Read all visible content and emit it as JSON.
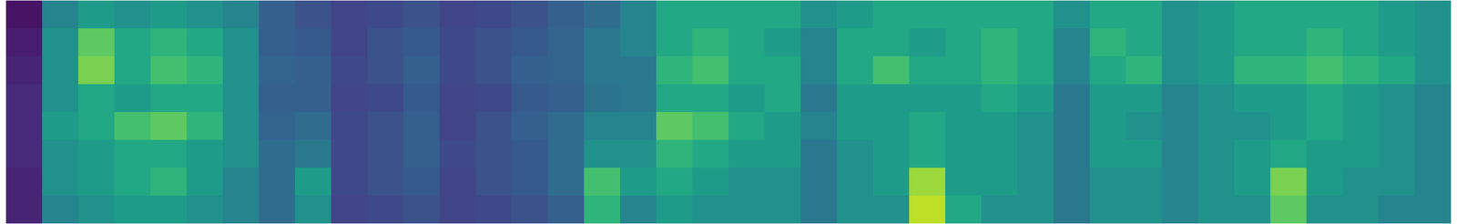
{
  "chart_data": {
    "type": "heatmap",
    "tick_labels": false,
    "zlim": [
      0,
      1
    ],
    "cells": [
      [
        0.05,
        0.45,
        0.55,
        0.5,
        0.55,
        0.5,
        0.45,
        0.3,
        0.25,
        0.2,
        0.22,
        0.25,
        0.2,
        0.22,
        0.25,
        0.3,
        0.35,
        0.45,
        0.6,
        0.6,
        0.6,
        0.6,
        0.5,
        0.55,
        0.6,
        0.6,
        0.6,
        0.6,
        0.6,
        0.5,
        0.6,
        0.6,
        0.5,
        0.55,
        0.6,
        0.6,
        0.6,
        0.6,
        0.55,
        0.5
      ],
      [
        0.08,
        0.5,
        0.75,
        0.6,
        0.65,
        0.6,
        0.5,
        0.3,
        0.28,
        0.2,
        0.25,
        0.28,
        0.22,
        0.25,
        0.28,
        0.32,
        0.4,
        0.45,
        0.6,
        0.65,
        0.6,
        0.55,
        0.45,
        0.6,
        0.6,
        0.55,
        0.6,
        0.65,
        0.6,
        0.45,
        0.65,
        0.6,
        0.5,
        0.55,
        0.6,
        0.6,
        0.65,
        0.6,
        0.55,
        0.5
      ],
      [
        0.1,
        0.5,
        0.8,
        0.6,
        0.7,
        0.65,
        0.5,
        0.32,
        0.3,
        0.22,
        0.25,
        0.3,
        0.22,
        0.25,
        0.3,
        0.32,
        0.4,
        0.4,
        0.65,
        0.7,
        0.6,
        0.6,
        0.45,
        0.6,
        0.7,
        0.6,
        0.6,
        0.65,
        0.6,
        0.45,
        0.6,
        0.65,
        0.5,
        0.55,
        0.65,
        0.65,
        0.7,
        0.65,
        0.6,
        0.5
      ],
      [
        0.12,
        0.5,
        0.6,
        0.55,
        0.6,
        0.6,
        0.5,
        0.3,
        0.3,
        0.2,
        0.22,
        0.28,
        0.2,
        0.22,
        0.28,
        0.3,
        0.38,
        0.4,
        0.6,
        0.6,
        0.55,
        0.6,
        0.4,
        0.55,
        0.55,
        0.55,
        0.55,
        0.6,
        0.55,
        0.4,
        0.55,
        0.55,
        0.45,
        0.5,
        0.55,
        0.55,
        0.6,
        0.55,
        0.5,
        0.45
      ],
      [
        0.12,
        0.55,
        0.6,
        0.7,
        0.75,
        0.65,
        0.5,
        0.32,
        0.35,
        0.22,
        0.25,
        0.3,
        0.2,
        0.25,
        0.3,
        0.35,
        0.45,
        0.45,
        0.75,
        0.7,
        0.6,
        0.55,
        0.45,
        0.55,
        0.55,
        0.6,
        0.55,
        0.55,
        0.5,
        0.4,
        0.55,
        0.5,
        0.45,
        0.5,
        0.5,
        0.55,
        0.6,
        0.55,
        0.5,
        0.45
      ],
      [
        0.12,
        0.5,
        0.55,
        0.6,
        0.6,
        0.55,
        0.5,
        0.35,
        0.4,
        0.22,
        0.25,
        0.3,
        0.22,
        0.25,
        0.28,
        0.35,
        0.5,
        0.5,
        0.65,
        0.6,
        0.55,
        0.55,
        0.4,
        0.5,
        0.55,
        0.6,
        0.55,
        0.55,
        0.5,
        0.4,
        0.55,
        0.55,
        0.45,
        0.5,
        0.55,
        0.6,
        0.55,
        0.55,
        0.5,
        0.45
      ],
      [
        0.1,
        0.5,
        0.55,
        0.6,
        0.65,
        0.55,
        0.45,
        0.35,
        0.55,
        0.22,
        0.25,
        0.28,
        0.2,
        0.25,
        0.28,
        0.35,
        0.7,
        0.55,
        0.6,
        0.55,
        0.5,
        0.5,
        0.4,
        0.5,
        0.55,
        0.85,
        0.55,
        0.55,
        0.5,
        0.4,
        0.5,
        0.5,
        0.45,
        0.5,
        0.55,
        0.8,
        0.55,
        0.5,
        0.5,
        0.45
      ],
      [
        0.1,
        0.45,
        0.5,
        0.55,
        0.55,
        0.5,
        0.45,
        0.35,
        0.5,
        0.2,
        0.22,
        0.25,
        0.2,
        0.22,
        0.25,
        0.3,
        0.65,
        0.45,
        0.55,
        0.5,
        0.5,
        0.5,
        0.4,
        0.5,
        0.5,
        0.9,
        0.6,
        0.5,
        0.5,
        0.4,
        0.5,
        0.5,
        0.45,
        0.5,
        0.5,
        0.75,
        0.5,
        0.5,
        0.45,
        0.45
      ]
    ]
  }
}
